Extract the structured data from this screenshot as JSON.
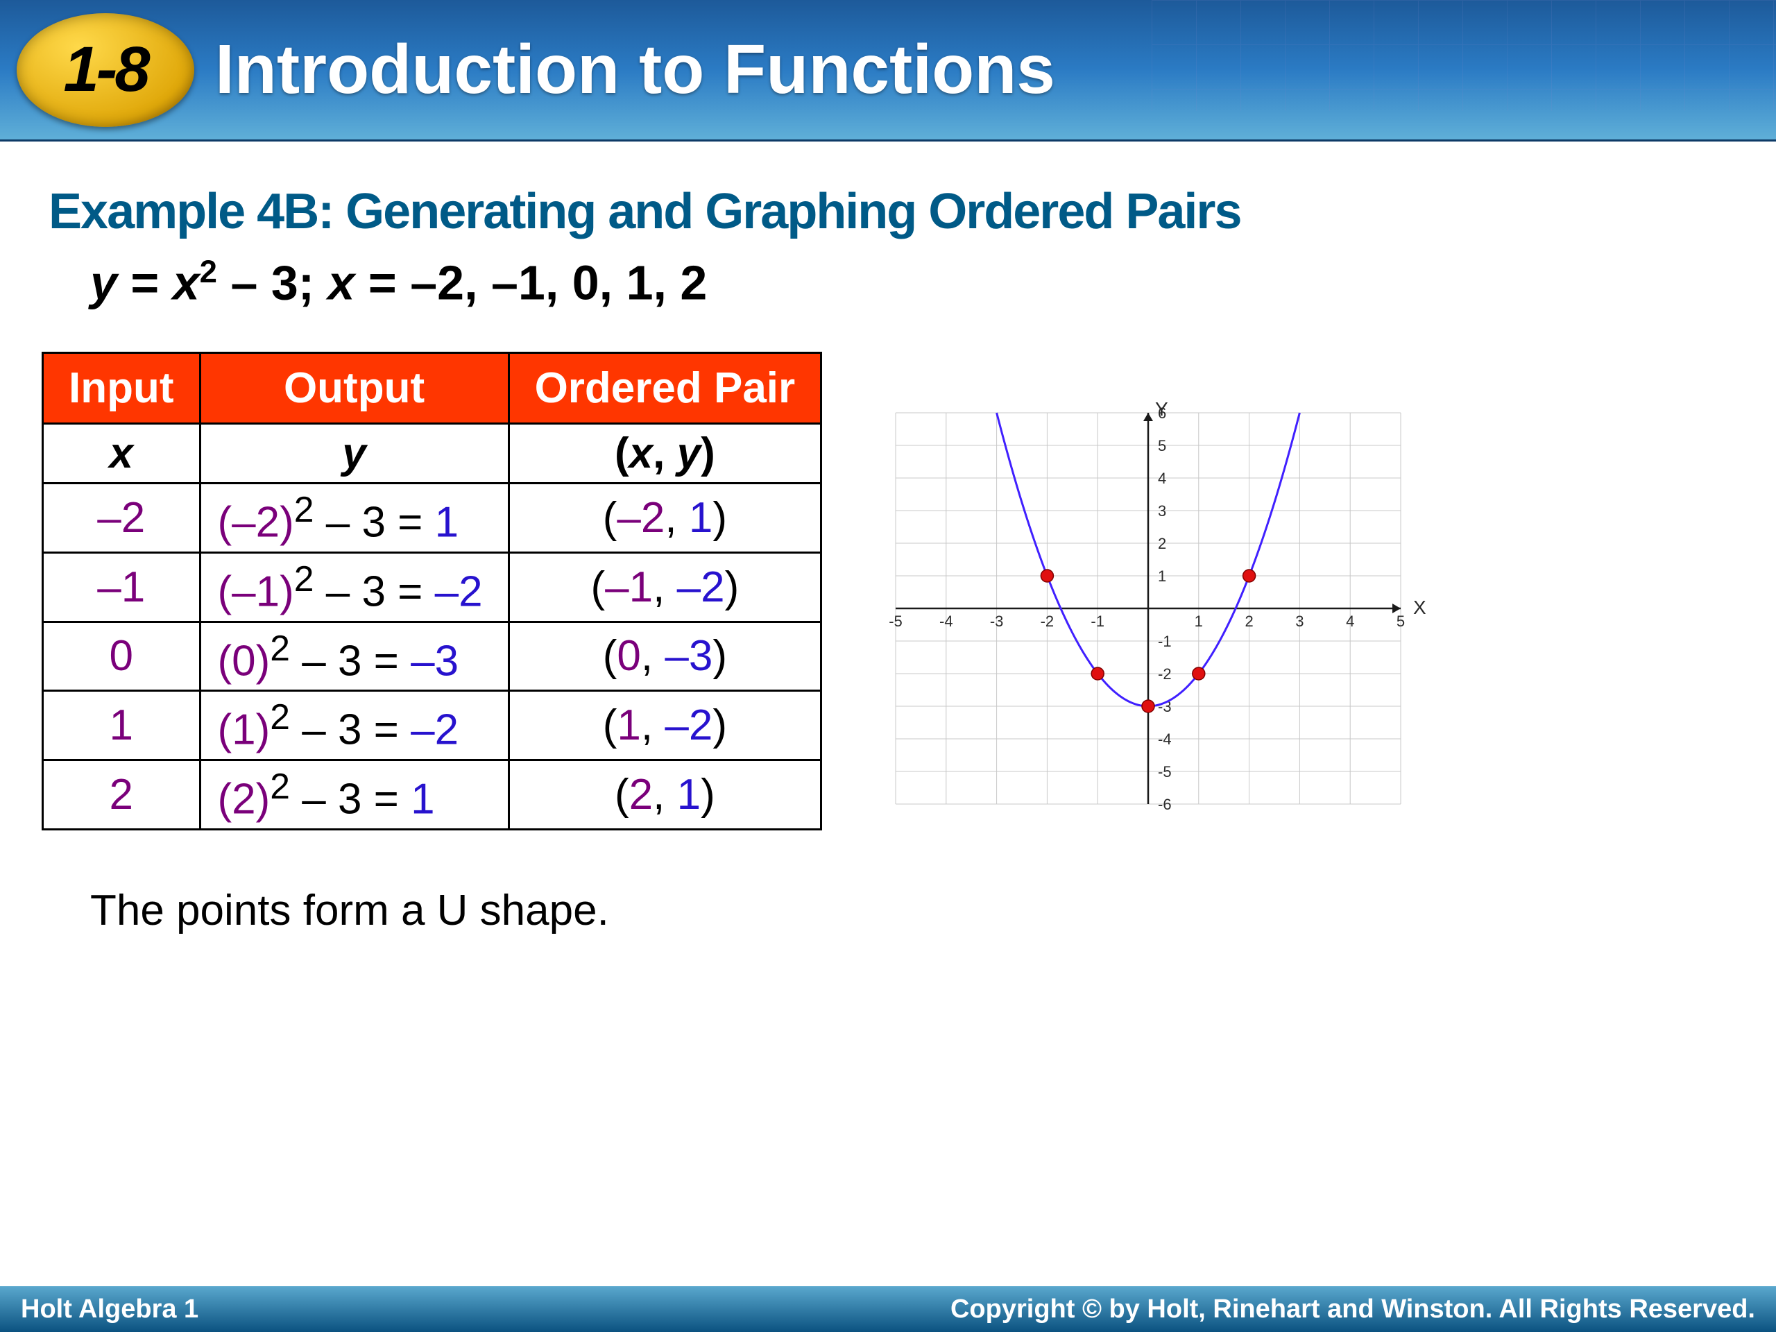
{
  "header": {
    "section_number": "1-8",
    "title": "Introduction to Functions"
  },
  "example": {
    "title": "Example 4B: Generating and Graphing Ordered Pairs",
    "equation_html": "<span class='var'>y</span> <span class='non-italic'>=</span> <span class='var'>x</span><sup>2</sup> <span class='non-italic'>– 3;</span> <span class='var'>x</span> <span class='non-italic'>= –2, –1, 0, 1, 2</span>"
  },
  "table": {
    "headers": [
      "Input",
      "Output",
      "Ordered Pair"
    ],
    "subheaders": [
      "x",
      "y",
      "(x, y)"
    ],
    "rows": [
      {
        "input": {
          "text": "–2",
          "color": "#7a007a"
        },
        "output_html": "<span class='c-purple'>(–2)</span><sup class='c-black'>2</sup> <span class='c-black'>– 3 =</span> <span class='c-blue'>1</span>",
        "pair_html": "<span class='c-black'>(</span><span class='c-purple'>–2</span><span class='c-black'>, </span><span class='c-blue'>1</span><span class='c-black'>)</span>"
      },
      {
        "input": {
          "text": "–1",
          "color": "#7a007a"
        },
        "output_html": "<span class='c-purple'>(–1)</span><sup class='c-black'>2</sup> <span class='c-black'>– 3 =</span> <span class='c-blue'>–2</span>",
        "pair_html": "<span class='c-black'>(</span><span class='c-purple'>–1</span><span class='c-black'>, </span><span class='c-blue'>–2</span><span class='c-black'>)</span>"
      },
      {
        "input": {
          "text": "0",
          "color": "#7a007a"
        },
        "output_html": "<span class='c-purple'>(0)</span><sup class='c-black'>2</sup> <span class='c-black'>– 3 =</span> <span class='c-blue'>–3</span>",
        "pair_html": "<span class='c-black'>(</span><span class='c-purple'>0</span><span class='c-black'>, </span><span class='c-blue'>–3</span><span class='c-black'>)</span>"
      },
      {
        "input": {
          "text": "1",
          "color": "#7a007a"
        },
        "output_html": "<span class='c-purple'>(1)</span><sup class='c-black'>2</sup> <span class='c-black'>– 3 =</span> <span class='c-blue'>–2</span>",
        "pair_html": "<span class='c-black'>(</span><span class='c-purple'>1</span><span class='c-black'>, </span><span class='c-blue'>–2</span><span class='c-black'>)</span>"
      },
      {
        "input": {
          "text": "2",
          "color": "#7a007a"
        },
        "output_html": "<span class='c-purple'>(2)</span><sup class='c-black'>2</sup> <span class='c-black'>– 3 =</span> <span class='c-blue'>1</span>",
        "pair_html": "<span class='c-black'>(</span><span class='c-purple'>2</span><span class='c-black'>, </span><span class='c-blue'>1</span><span class='c-black'>)</span>"
      }
    ]
  },
  "chart": {
    "type": "scatter-line",
    "xlim": [
      -5,
      5
    ],
    "ylim": [
      -6,
      6
    ],
    "xtick_step": 1,
    "ytick_step": 1,
    "grid_color": "#c8c8c8",
    "axis_color": "#1a1a1a",
    "axis_label_color": "#2b2b2b",
    "axis_label_fontsize": 22,
    "x_axis_label": "X",
    "y_axis_label": "Y",
    "line_color": "#4020ff",
    "line_width": 3,
    "point_color": "#e01010",
    "point_stroke": "#800000",
    "point_radius": 9,
    "points": [
      [
        -2,
        1
      ],
      [
        -1,
        -2
      ],
      [
        0,
        -3
      ],
      [
        1,
        -2
      ],
      [
        2,
        1
      ]
    ],
    "curve_extent_x": [
      -3,
      3
    ]
  },
  "conclusion": "The points form a U shape.",
  "footer": {
    "left": "Holt Algebra 1",
    "right": "Copyright © by Holt, Rinehart and Winston. All Rights Reserved."
  }
}
